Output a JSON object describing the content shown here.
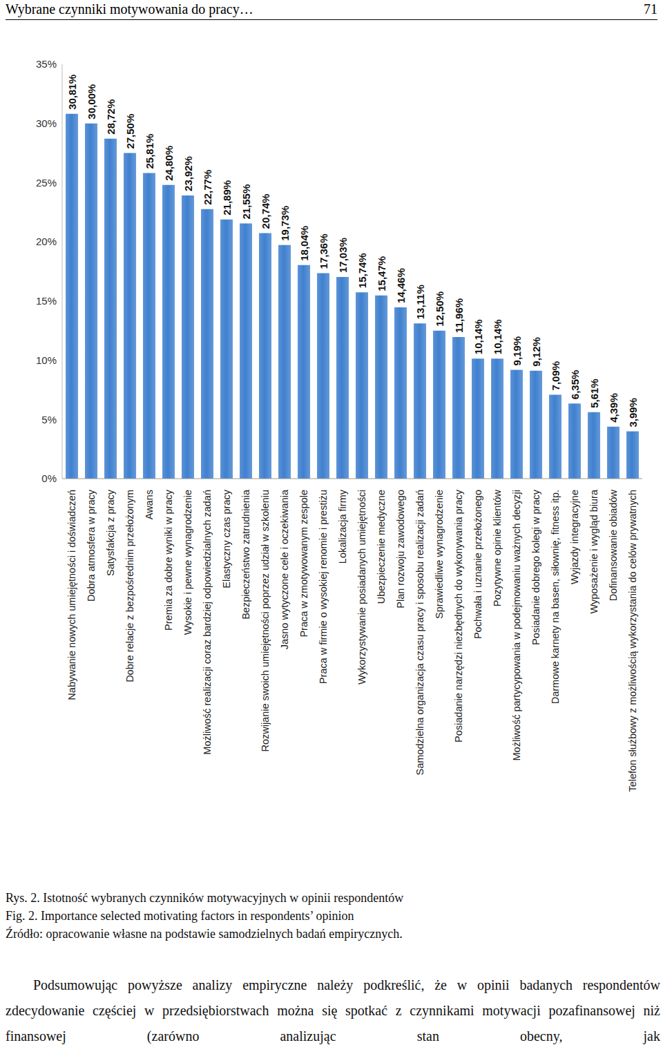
{
  "header": {
    "title": "Wybrane czynniki motywowania do pracy…",
    "page_number": "71"
  },
  "chart_data": {
    "type": "bar",
    "categories": [
      "Nabywanie nowych umiejętności i doświadczeń",
      "Dobra atmosfera w pracy",
      "Satysfakcja z pracy",
      "Dobre relacje z bezpośrednim przełożonym",
      "Awans",
      "Premia za dobre wyniki w pracy",
      "Wysokie i pewne wynagrodzenie",
      "Możliwość realizacji coraz bardziej odpowiedzialnych zadań",
      "Elastyczny czas pracy",
      "Bezpieczeństwo zatrudnienia",
      "Rozwijanie swoich umiejętności poprzez udział w szkoleniu",
      "Jasno wytyczone cele i oczekiwania",
      "Praca w zmotywowanym zespole",
      "Praca w firmie o wysokiej renomie i prestiżu",
      "Lokalizacja firmy",
      "Wykorzystywanie posiadanych umiejętności",
      "Ubezpieczenie medyczne",
      "Plan rozwoju zawodowego",
      "Samodzielna organizacja czasu pracy i sposobu realizacji zadań",
      "Sprawiedliwe wynagrodzenie",
      "Posiadanie narzędzi niezbędnych do wykonywania pracy",
      "Pochwała i uznanie przełożonego",
      "Pozytywne opinie klientów",
      "Możliwość partycypowania w podejmowaniu ważnych decyzji",
      "Posiadanie dobrego kolegi w pracy",
      "Darmowe karnety na basen, siłownię, fitness itp.",
      "Wyjazdy integracyjne",
      "Wyposażenie i wygląd biura",
      "Dofinansowanie obiadów",
      "Telefon służbowy z możliwością wykorzystania do celów prywatnych"
    ],
    "values": [
      30.81,
      30.0,
      28.72,
      27.5,
      25.81,
      24.8,
      23.92,
      22.77,
      21.89,
      21.55,
      20.74,
      19.73,
      18.04,
      17.36,
      17.03,
      15.74,
      15.47,
      14.46,
      13.11,
      12.5,
      11.96,
      10.14,
      10.14,
      9.19,
      9.12,
      7.09,
      6.35,
      5.61,
      4.39,
      3.99
    ],
    "value_labels": [
      "30,81%",
      "30,00%",
      "28,72%",
      "27,50%",
      "25,81%",
      "24,80%",
      "23,92%",
      "22,77%",
      "21,89%",
      "21,55%",
      "20,74%",
      "19,73%",
      "18,04%",
      "17,36%",
      "17,03%",
      "15,74%",
      "15,47%",
      "14,46%",
      "13,11%",
      "12,50%",
      "11,96%",
      "10,14%",
      "10,14%",
      "9,19%",
      "9,12%",
      "7,09%",
      "6,35%",
      "5,61%",
      "4,39%",
      "3,99%"
    ],
    "data_labels": true,
    "color": "#3f80cf",
    "ylim": [
      0,
      35
    ],
    "yticks": [
      {
        "value": 0,
        "label": "0%"
      },
      {
        "value": 5,
        "label": "5%"
      },
      {
        "value": 10,
        "label": "10%"
      },
      {
        "value": 15,
        "label": "15%"
      },
      {
        "value": 20,
        "label": "20%"
      },
      {
        "value": 25,
        "label": "25%"
      },
      {
        "value": 30,
        "label": "30%"
      },
      {
        "value": 35,
        "label": "35%"
      }
    ],
    "grid": false
  },
  "caption": {
    "pl": "Rys. 2. Istotność wybranych czynników motywacyjnych w opinii respondentów",
    "en": "Fig. 2. Importance selected motivating factors in respondents’ opinion",
    "source": "Źródło: opracowanie własne na podstawie samodzielnych badań empirycznych."
  },
  "body": {
    "text": "Podsumowując powyższe analizy empiryczne należy podkreślić, że w opinii badanych respondentów zdecydowanie częściej w przedsiębiorstwach można się spotkać z czynnikami motywacji pozafinansowej niż finansowej (zarówno analizując stan obecny, jak"
  }
}
